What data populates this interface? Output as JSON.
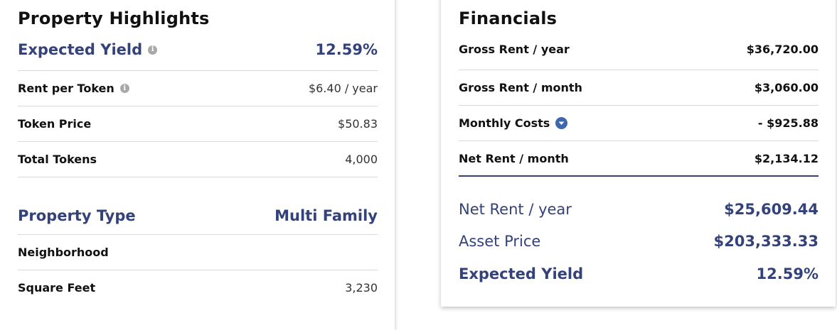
{
  "highlights": {
    "title": "Property Highlights",
    "expected_yield": {
      "label": "Expected Yield",
      "value": "12.59%",
      "icon": "info-icon"
    },
    "rent_per_token": {
      "label": "Rent per Token",
      "value": "$6.40 / year",
      "icon": "info-icon"
    },
    "token_price": {
      "label": "Token Price",
      "value": "$50.83"
    },
    "total_tokens": {
      "label": "Total Tokens",
      "value": "4,000"
    },
    "property_type": {
      "label": "Property Type",
      "value": "Multi Family"
    },
    "neighborhood": {
      "label": "Neighborhood",
      "value": ""
    },
    "square_feet": {
      "label": "Square Feet",
      "value": "3,230"
    }
  },
  "financials": {
    "title": "Financials",
    "gross_rent_year": {
      "label": "Gross Rent / year",
      "value": "$36,720.00"
    },
    "gross_rent_month": {
      "label": "Gross Rent / month",
      "value": "$3,060.00"
    },
    "monthly_costs": {
      "label": "Monthly Costs",
      "value": "- $925.88",
      "icon": "chevron-down-icon"
    },
    "net_rent_month": {
      "label": "Net Rent / month",
      "value": "$2,134.12"
    },
    "net_rent_year": {
      "label": "Net Rent / year",
      "value": "$25,609.44"
    },
    "asset_price": {
      "label": "Asset Price",
      "value": "$203,333.33"
    },
    "expected_yield": {
      "label": "Expected Yield",
      "value": "12.59%"
    }
  },
  "colors": {
    "accent": "#33427a",
    "chevron": "#3d67b0",
    "info": "#a8a8a8",
    "divider": "#d9d9d9"
  }
}
